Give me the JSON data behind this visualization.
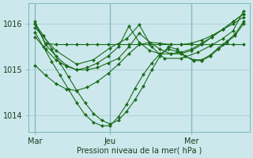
{
  "bg_color": "#cce8ec",
  "grid_color": "#9fc8d0",
  "line_color": "#1a6b1a",
  "marker_color": "#1a6b1a",
  "xlabel": "Pression niveau de la mer( hPa )",
  "yticks": [
    1014,
    1015,
    1016
  ],
  "ylim": [
    1013.65,
    1016.45
  ],
  "xtick_labels": [
    "Mar",
    "Jeu",
    "Mer"
  ],
  "xtick_positions": [
    0.0,
    0.36,
    0.75
  ],
  "xlim": [
    -0.03,
    1.03
  ],
  "series": [
    {
      "x": [
        0.0,
        0.05,
        0.1,
        0.15,
        0.2,
        0.25,
        0.3,
        0.35,
        0.4,
        0.45,
        0.5,
        0.55,
        0.6,
        0.65,
        0.7,
        0.75,
        0.8,
        0.85,
        0.9,
        0.95,
        1.0
      ],
      "y": [
        1016.0,
        1015.58,
        1015.55,
        1015.55,
        1015.55,
        1015.55,
        1015.55,
        1015.55,
        1015.55,
        1015.55,
        1015.55,
        1015.55,
        1015.55,
        1015.55,
        1015.55,
        1015.55,
        1015.55,
        1015.55,
        1015.55,
        1015.55,
        1015.55
      ]
    },
    {
      "x": [
        0.0,
        0.04,
        0.08,
        0.12,
        0.16,
        0.2,
        0.24,
        0.28,
        0.32,
        0.36,
        0.4,
        0.44,
        0.48,
        0.52,
        0.56,
        0.6,
        0.64,
        0.68,
        0.72,
        0.76,
        0.8,
        0.84,
        0.88,
        0.92,
        0.96,
        1.0
      ],
      "y": [
        1016.0,
        1015.75,
        1015.45,
        1015.15,
        1014.85,
        1014.55,
        1014.28,
        1014.05,
        1013.9,
        1013.82,
        1013.9,
        1014.1,
        1014.35,
        1014.65,
        1015.0,
        1015.3,
        1015.5,
        1015.45,
        1015.3,
        1015.2,
        1015.2,
        1015.3,
        1015.45,
        1015.6,
        1015.75,
        1016.0
      ]
    },
    {
      "x": [
        0.0,
        0.04,
        0.08,
        0.12,
        0.16,
        0.2,
        0.24,
        0.28,
        0.32,
        0.36,
        0.4,
        0.44,
        0.48,
        0.52,
        0.56,
        0.6,
        0.64,
        0.68,
        0.72,
        0.76,
        0.8,
        0.84,
        0.88,
        0.92,
        0.96,
        1.0
      ],
      "y": [
        1015.82,
        1015.5,
        1015.18,
        1014.88,
        1014.58,
        1014.28,
        1014.02,
        1013.86,
        1013.78,
        1013.78,
        1013.98,
        1014.25,
        1014.6,
        1014.9,
        1015.15,
        1015.35,
        1015.45,
        1015.4,
        1015.3,
        1015.22,
        1015.22,
        1015.32,
        1015.48,
        1015.62,
        1015.78,
        1016.05
      ]
    },
    {
      "x": [
        0.0,
        0.05,
        0.1,
        0.15,
        0.2,
        0.25,
        0.3,
        0.35,
        0.4,
        0.45,
        0.5,
        0.55,
        0.6,
        0.65,
        0.7,
        0.75,
        0.8,
        0.85,
        0.9,
        0.95,
        1.0
      ],
      "y": [
        1016.05,
        1015.55,
        1015.3,
        1015.1,
        1015.0,
        1015.0,
        1015.05,
        1015.15,
        1015.25,
        1015.5,
        1015.8,
        1015.6,
        1015.45,
        1015.35,
        1015.35,
        1015.42,
        1015.55,
        1015.72,
        1015.88,
        1016.05,
        1016.22
      ]
    },
    {
      "x": [
        0.0,
        0.05,
        0.1,
        0.15,
        0.2,
        0.25,
        0.3,
        0.35,
        0.4,
        0.45,
        0.5,
        0.55,
        0.6,
        0.65,
        0.7,
        0.75,
        0.8,
        0.85,
        0.9,
        0.95,
        1.0
      ],
      "y": [
        1015.72,
        1015.45,
        1015.22,
        1015.08,
        1015.0,
        1015.05,
        1015.15,
        1015.3,
        1015.5,
        1015.95,
        1015.6,
        1015.42,
        1015.35,
        1015.35,
        1015.38,
        1015.45,
        1015.58,
        1015.72,
        1015.88,
        1016.05,
        1016.22
      ]
    },
    {
      "x": [
        0.0,
        0.05,
        0.1,
        0.15,
        0.2,
        0.25,
        0.3,
        0.35,
        0.4,
        0.45,
        0.5,
        0.55,
        0.6,
        0.65,
        0.7,
        0.75,
        0.8,
        0.85,
        0.9,
        0.95,
        1.0
      ],
      "y": [
        1015.1,
        1014.88,
        1014.7,
        1014.58,
        1014.55,
        1014.62,
        1014.75,
        1014.92,
        1015.12,
        1015.35,
        1015.55,
        1015.6,
        1015.58,
        1015.55,
        1015.55,
        1015.58,
        1015.65,
        1015.75,
        1015.88,
        1016.0,
        1016.15
      ]
    },
    {
      "x": [
        0.0,
        0.1,
        0.2,
        0.28,
        0.36,
        0.44,
        0.5,
        0.56,
        0.62,
        0.7,
        0.78,
        0.84,
        0.9,
        0.95,
        1.0
      ],
      "y": [
        1015.92,
        1015.42,
        1015.12,
        1015.22,
        1015.48,
        1015.68,
        1015.98,
        1015.5,
        1015.25,
        1015.25,
        1015.38,
        1015.52,
        1015.68,
        1015.85,
        1016.28
      ]
    }
  ]
}
